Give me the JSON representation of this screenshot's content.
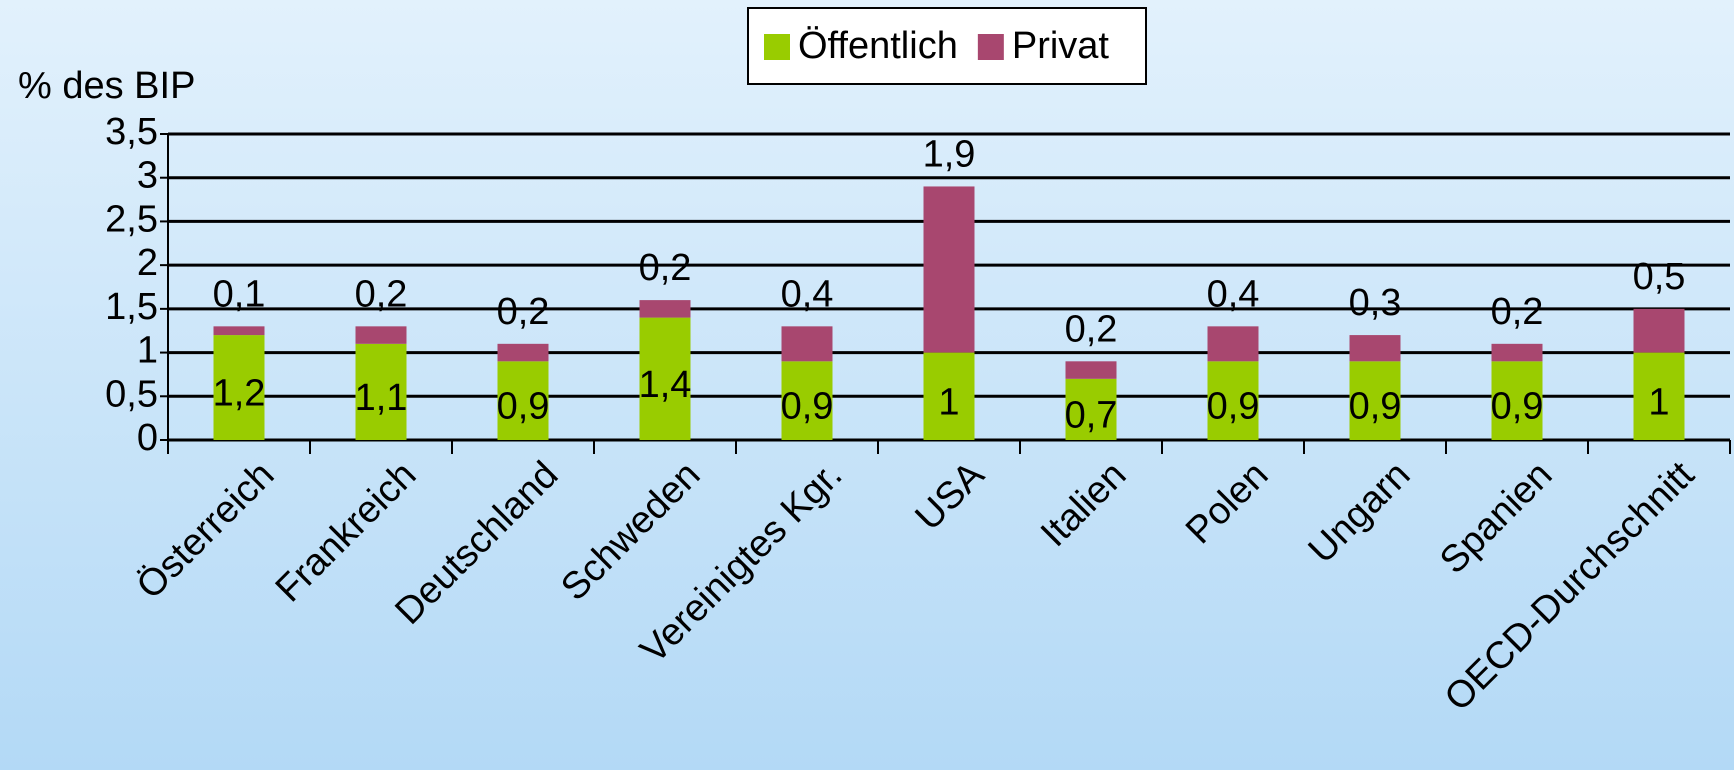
{
  "chart_data": {
    "type": "stacked_bar",
    "y_label": "% des BIP",
    "categories": [
      "Österreich",
      "Frankreich",
      "Deutschland",
      "Schweden",
      "Vereinigtes Kgr.",
      "USA",
      "Italien",
      "Polen",
      "Ungarn",
      "Spanien",
      "OECD-Durchschnitt"
    ],
    "series": [
      {
        "name": "Öffentlich",
        "color": "#99cc00",
        "values": [
          1.2,
          1.1,
          0.9,
          1.4,
          0.9,
          1,
          0.7,
          0.9,
          0.9,
          0.9,
          1
        ],
        "value_labels": [
          "1,2",
          "1,1",
          "0,9",
          "1,4",
          "0,9",
          "1",
          "0,7",
          "0,9",
          "0,9",
          "0,9",
          "1"
        ]
      },
      {
        "name": "Privat",
        "color": "#a8476f",
        "values": [
          0.1,
          0.2,
          0.2,
          0.2,
          0.4,
          1.9,
          0.2,
          0.4,
          0.3,
          0.2,
          0.5
        ],
        "value_labels": [
          "0,1",
          "0,2",
          "0,2",
          "0,2",
          "0,4",
          "1,9",
          "0,2",
          "0,4",
          "0,3",
          "0,2",
          "0,5"
        ]
      }
    ],
    "ylim": [
      0,
      3.5
    ],
    "yticks": [
      0,
      {
        "value": 0.5,
        "label": "0,5"
      },
      1,
      {
        "value": 1.5,
        "label": "1,5"
      },
      2,
      {
        "value": 2.5,
        "label": "2,5"
      },
      3,
      {
        "value": 3.5,
        "label": "3,5"
      }
    ],
    "grid": true,
    "legend": "top"
  }
}
